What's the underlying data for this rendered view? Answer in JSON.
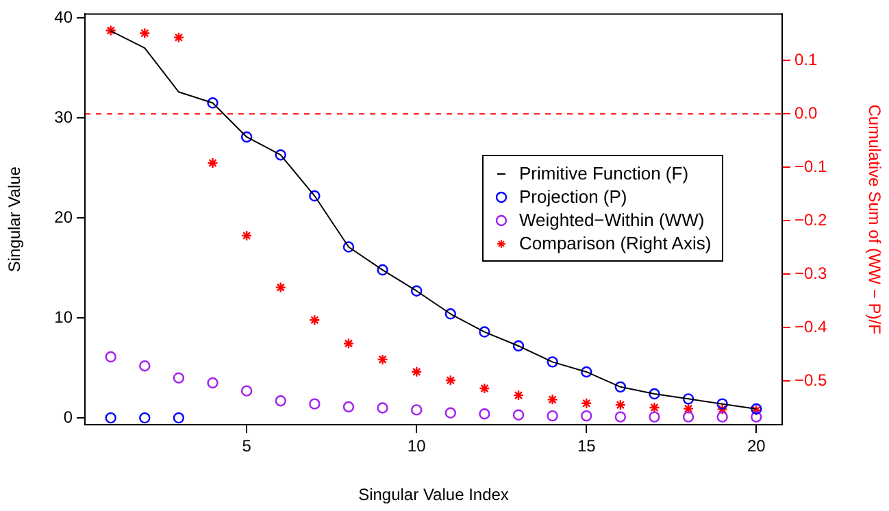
{
  "chart_data": {
    "type": "scatter",
    "xlabel": "Singular Value Index",
    "ylabel": "Singular Value",
    "y2label": "Cumulative Sum of (WW − P)/F",
    "x": [
      1,
      2,
      3,
      4,
      5,
      6,
      7,
      8,
      9,
      10,
      11,
      12,
      13,
      14,
      15,
      16,
      17,
      18,
      19,
      20
    ],
    "series": [
      {
        "name": "Primitive Function (F)",
        "type": "line",
        "marker": "none",
        "color": "#000000",
        "values": [
          38.7,
          37.0,
          32.6,
          31.5,
          28.1,
          26.3,
          22.2,
          17.1,
          14.8,
          12.7,
          10.4,
          8.6,
          7.2,
          5.6,
          4.6,
          3.1,
          2.4,
          1.9,
          1.4,
          0.9
        ]
      },
      {
        "name": "Projection (P)",
        "marker": "circle",
        "color": "#0000ff",
        "values": [
          0,
          0,
          0,
          31.5,
          28.1,
          26.3,
          22.2,
          17.1,
          14.8,
          12.7,
          10.4,
          8.6,
          7.2,
          5.6,
          4.6,
          3.1,
          2.4,
          1.9,
          1.4,
          0.9
        ]
      },
      {
        "name": "Weighted−Within (WW)",
        "marker": "circle",
        "color": "#a020f0",
        "values": [
          6.1,
          5.2,
          4.0,
          3.5,
          2.7,
          1.7,
          1.4,
          1.1,
          1.0,
          0.8,
          0.5,
          0.4,
          0.3,
          0.2,
          0.2,
          0.1,
          0.1,
          0.1,
          0.1,
          0.1
        ]
      },
      {
        "name": "Comparison (Right Axis)",
        "marker": "cross",
        "axis": "y2",
        "color": "#ff0000",
        "values": [
          0.156,
          0.151,
          0.143,
          -0.092,
          -0.228,
          -0.325,
          -0.386,
          -0.43,
          -0.46,
          -0.483,
          -0.499,
          -0.514,
          -0.527,
          -0.535,
          -0.542,
          -0.545,
          -0.55,
          -0.552,
          -0.553,
          -0.555
        ]
      }
    ],
    "xlim": [
      0.24,
      20.76
    ],
    "xticks": [
      5,
      10,
      15,
      20
    ],
    "ylim": [
      -0.68,
      40.4
    ],
    "yticks": [
      0,
      10,
      20,
      30,
      40
    ],
    "y2lim": [
      -0.582,
      0.187
    ],
    "y2ticks": [
      {
        "value": 0.1,
        "label": "0.1"
      },
      {
        "value": 0,
        "label": "0.0"
      },
      {
        "value": -0.1,
        "label": "−0.1"
      },
      {
        "value": -0.2,
        "label": "−0.2"
      },
      {
        "value": -0.3,
        "label": "−0.3"
      },
      {
        "value": -0.4,
        "label": "−0.4"
      },
      {
        "value": -0.5,
        "label": "−0.5"
      }
    ],
    "ref_lines": [
      {
        "axis": "y2",
        "value": 0,
        "color": "#ff0000",
        "line_style": "dashed"
      }
    ],
    "grid": false,
    "legend": "right"
  }
}
